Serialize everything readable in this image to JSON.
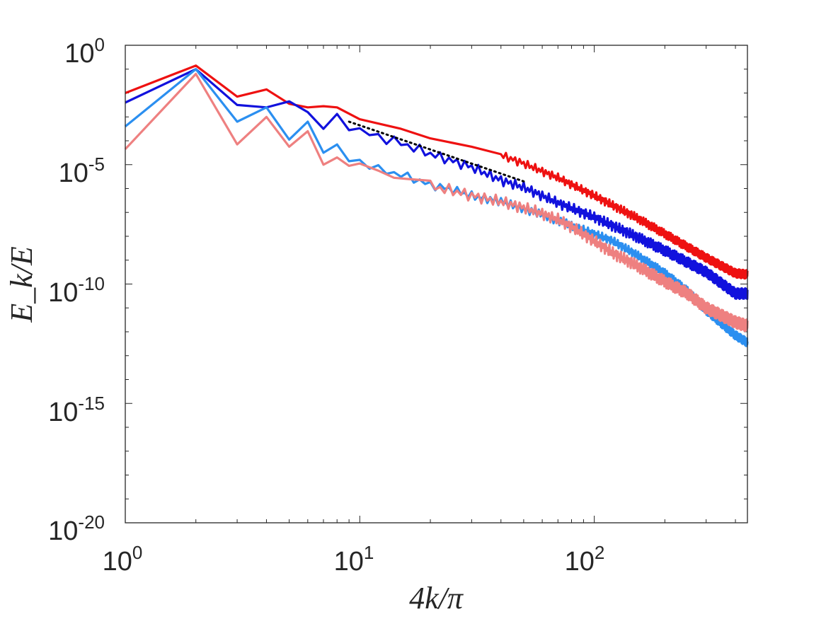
{
  "chart_data": {
    "type": "line",
    "title": "",
    "xlabel": "4k/π",
    "ylabel": "E_k/E",
    "xscale": "log",
    "yscale": "log",
    "xlim": [
      1,
      450
    ],
    "ylim": [
      1e-20,
      1
    ],
    "x_ticks": [
      {
        "base": "10",
        "exp": "0"
      },
      {
        "base": "10",
        "exp": "1"
      },
      {
        "base": "10",
        "exp": "2"
      }
    ],
    "y_ticks": [
      {
        "base": "10",
        "exp": "0"
      },
      {
        "base": "10",
        "exp": "-5"
      },
      {
        "base": "10",
        "exp": "-10"
      },
      {
        "base": "10",
        "exp": "-15"
      },
      {
        "base": "10",
        "exp": "-20"
      }
    ],
    "colors": {
      "red": "#ee1111",
      "blue": "#1111dd",
      "lightblue": "#2b8ff0",
      "pink": "#ee8080",
      "reference": "#000000"
    },
    "series": [
      {
        "name": "red",
        "color": "#ee1111",
        "x": [
          1,
          2,
          3,
          4,
          5,
          6,
          7,
          8,
          10,
          15,
          20,
          30,
          40,
          50,
          70,
          100,
          150,
          200,
          300,
          400,
          450
        ],
        "logy": [
          -2.0,
          -0.85,
          -2.15,
          -1.85,
          -2.45,
          -2.6,
          -2.55,
          -2.6,
          -3.1,
          -3.5,
          -3.9,
          -4.25,
          -4.6,
          -4.95,
          -5.55,
          -6.3,
          -7.2,
          -7.9,
          -8.9,
          -9.55,
          -9.6
        ],
        "noise_from": 40,
        "noise_amp": 0.18
      },
      {
        "name": "blue",
        "color": "#1111dd",
        "x": [
          1,
          2,
          3,
          4,
          5,
          6,
          7,
          8,
          10,
          15,
          20,
          30,
          40,
          50,
          70,
          100,
          150,
          200,
          300,
          400,
          450
        ],
        "logy": [
          -2.4,
          -1.0,
          -2.5,
          -2.6,
          -2.35,
          -2.8,
          -3.5,
          -3.05,
          -3.6,
          -4.1,
          -4.55,
          -5.1,
          -5.65,
          -5.95,
          -6.6,
          -7.2,
          -8.0,
          -8.6,
          -9.5,
          -10.4,
          -10.4
        ],
        "noise_from": 8,
        "noise_amp": 0.22
      },
      {
        "name": "lightblue",
        "color": "#2b8ff0",
        "x": [
          1,
          2,
          3,
          4,
          5,
          6,
          7,
          8,
          9,
          10,
          12,
          14,
          16,
          20,
          25,
          30,
          40,
          50,
          60,
          70,
          80,
          100,
          120,
          150,
          200,
          250,
          300,
          400,
          450
        ],
        "logy": [
          -3.4,
          -1.0,
          -3.2,
          -2.6,
          -3.95,
          -3.2,
          -4.5,
          -4.3,
          -4.8,
          -4.85,
          -5.2,
          -5.35,
          -5.5,
          -5.85,
          -6.05,
          -6.3,
          -6.55,
          -6.85,
          -7.1,
          -7.35,
          -7.55,
          -7.9,
          -8.2,
          -8.75,
          -9.55,
          -10.3,
          -11.1,
          -12.15,
          -12.45
        ],
        "noise_from": 8,
        "noise_amp": 0.18
      },
      {
        "name": "pink",
        "color": "#ee8080",
        "x": [
          1,
          2,
          3,
          4,
          5,
          6,
          7,
          8,
          9,
          10,
          12,
          14,
          16,
          20,
          25,
          30,
          40,
          50,
          60,
          70,
          80,
          100,
          120,
          150,
          200,
          250,
          300,
          400,
          450
        ],
        "logy": [
          -4.35,
          -1.2,
          -4.15,
          -3.0,
          -4.25,
          -3.6,
          -5.0,
          -4.7,
          -5.05,
          -4.95,
          -5.25,
          -5.55,
          -5.6,
          -5.9,
          -6.1,
          -6.3,
          -6.55,
          -6.8,
          -7.05,
          -7.3,
          -7.6,
          -8.2,
          -8.7,
          -9.2,
          -9.9,
          -10.4,
          -11.0,
          -11.6,
          -11.75
        ],
        "noise_from": 20,
        "noise_amp": 0.25
      }
    ],
    "reference_line": {
      "name": "reference",
      "style": "dotted",
      "color": "#000000",
      "x": [
        9,
        50
      ],
      "logy": [
        -3.2,
        -5.7
      ]
    }
  }
}
